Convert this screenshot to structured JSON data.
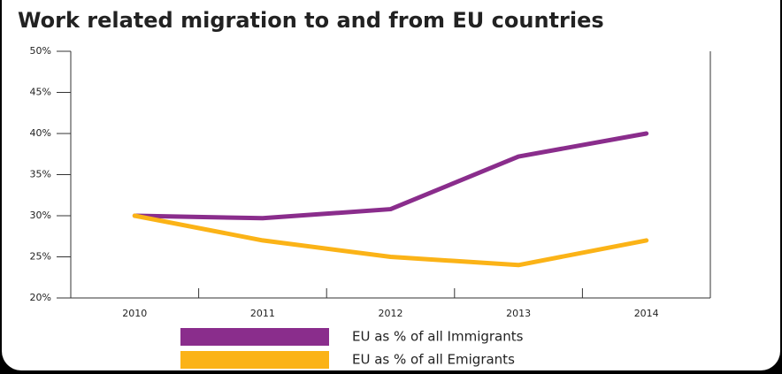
{
  "chart_data": {
    "type": "line",
    "title": "Work related migration to and from EU countries",
    "categories": [
      "2010",
      "2011",
      "2012",
      "2013",
      "2014"
    ],
    "series": [
      {
        "name": "EU as % of all Immigrants",
        "color": "#8a2d8c",
        "values": [
          30,
          29.7,
          30.8,
          37.2,
          40
        ]
      },
      {
        "name": "EU as % of all Emigrants",
        "color": "#fbb317",
        "values": [
          30,
          27,
          25,
          24,
          27
        ]
      }
    ],
    "ylim": [
      20,
      50
    ],
    "yticks": [
      {
        "value": 20,
        "label": "20%"
      },
      {
        "value": 25,
        "label": "25%"
      },
      {
        "value": 30,
        "label": "30%"
      },
      {
        "value": 35,
        "label": "35%"
      },
      {
        "value": 40,
        "label": "40%"
      },
      {
        "value": 45,
        "label": "45%"
      },
      {
        "value": 50,
        "label": "50%"
      }
    ],
    "grid": false
  }
}
